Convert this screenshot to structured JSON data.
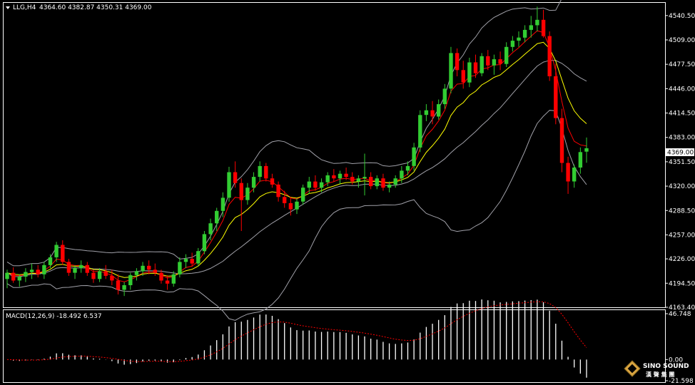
{
  "header": {
    "symbol": "LLG,H4",
    "ohlc": "4364.60 4382.87 4350.31 4369.00"
  },
  "macd_label": "MACD(12,26,9) -18.492 6.537",
  "current_price_label": "4369.00",
  "logo": {
    "name": "SINO SOUND",
    "subtitle": "漢 聲 集 團"
  },
  "colors": {
    "background": "#000000",
    "up": "#32cd32",
    "down": "#ff0000",
    "fast_ma": "#ff0000",
    "slow_ma": "#ffff00",
    "bollinger": "#a0a0a8",
    "grid_frame": "#ffffff",
    "macd_hist": "#ffffff",
    "macd_signal": "#ff0000"
  },
  "chart_data": [
    {
      "type": "candlestick",
      "timeframe": "H4",
      "ylim": [
        4163.4,
        4556
      ],
      "y_ticks": [
        "4540.50",
        "4509.00",
        "4477.50",
        "4446.00",
        "4414.50",
        "4383.00",
        "4351.50",
        "4320.00",
        "4288.50",
        "4257.00",
        "4226.00",
        "4194.50",
        "4163.40"
      ],
      "candles": [
        [
          4200,
          4212,
          4188,
          4208
        ],
        [
          4208,
          4215,
          4195,
          4198
        ],
        [
          4198,
          4206,
          4190,
          4203
        ],
        [
          4203,
          4214,
          4196,
          4209
        ],
        [
          4209,
          4220,
          4200,
          4212
        ],
        [
          4212,
          4218,
          4202,
          4206
        ],
        [
          4206,
          4222,
          4200,
          4218
        ],
        [
          4218,
          4232,
          4214,
          4228
        ],
        [
          4228,
          4248,
          4222,
          4244
        ],
        [
          4244,
          4250,
          4218,
          4222
        ],
        [
          4222,
          4226,
          4204,
          4208
        ],
        [
          4208,
          4218,
          4200,
          4214
        ],
        [
          4214,
          4224,
          4208,
          4218
        ],
        [
          4218,
          4222,
          4204,
          4208
        ],
        [
          4208,
          4212,
          4195,
          4200
        ],
        [
          4200,
          4214,
          4196,
          4210
        ],
        [
          4210,
          4218,
          4200,
          4204
        ],
        [
          4204,
          4212,
          4192,
          4198
        ],
        [
          4198,
          4206,
          4180,
          4186
        ],
        [
          4186,
          4196,
          4178,
          4192
        ],
        [
          4192,
          4208,
          4186,
          4205
        ],
        [
          4205,
          4214,
          4198,
          4210
        ],
        [
          4210,
          4222,
          4204,
          4217
        ],
        [
          4217,
          4224,
          4206,
          4212
        ],
        [
          4212,
          4220,
          4204,
          4208
        ],
        [
          4208,
          4212,
          4194,
          4198
        ],
        [
          4198,
          4205,
          4186,
          4194
        ],
        [
          4194,
          4210,
          4190,
          4206
        ],
        [
          4206,
          4228,
          4202,
          4222
        ],
        [
          4222,
          4232,
          4214,
          4226
        ],
        [
          4226,
          4234,
          4216,
          4220
        ],
        [
          4220,
          4240,
          4216,
          4236
        ],
        [
          4236,
          4262,
          4232,
          4258
        ],
        [
          4258,
          4278,
          4250,
          4272
        ],
        [
          4272,
          4292,
          4262,
          4288
        ],
        [
          4288,
          4312,
          4280,
          4305
        ],
        [
          4305,
          4345,
          4300,
          4338
        ],
        [
          4338,
          4352,
          4318,
          4324
        ],
        [
          4324,
          4330,
          4262,
          4302
        ],
        [
          4302,
          4324,
          4296,
          4318
        ],
        [
          4318,
          4338,
          4312,
          4332
        ],
        [
          4332,
          4352,
          4326,
          4346
        ],
        [
          4346,
          4350,
          4326,
          4330
        ],
        [
          4330,
          4336,
          4318,
          4322
        ],
        [
          4322,
          4326,
          4300,
          4306
        ],
        [
          4306,
          4314,
          4292,
          4298
        ],
        [
          4298,
          4306,
          4282,
          4290
        ],
        [
          4290,
          4304,
          4284,
          4300
        ],
        [
          4300,
          4322,
          4296,
          4318
        ],
        [
          4318,
          4332,
          4310,
          4326
        ],
        [
          4326,
          4334,
          4314,
          4318
        ],
        [
          4318,
          4330,
          4312,
          4325
        ],
        [
          4325,
          4338,
          4320,
          4334
        ],
        [
          4334,
          4342,
          4326,
          4330
        ],
        [
          4330,
          4340,
          4322,
          4336
        ],
        [
          4336,
          4344,
          4328,
          4332
        ],
        [
          4332,
          4338,
          4322,
          4326
        ],
        [
          4326,
          4334,
          4318,
          4330
        ],
        [
          4330,
          4362,
          4308,
          4332
        ],
        [
          4332,
          4338,
          4316,
          4320
        ],
        [
          4320,
          4334,
          4316,
          4330
        ],
        [
          4330,
          4336,
          4314,
          4318
        ],
        [
          4318,
          4326,
          4312,
          4322
        ],
        [
          4322,
          4334,
          4318,
          4330
        ],
        [
          4330,
          4346,
          4324,
          4340
        ],
        [
          4340,
          4352,
          4334,
          4346
        ],
        [
          4346,
          4376,
          4340,
          4370
        ],
        [
          4370,
          4418,
          4364,
          4412
        ],
        [
          4412,
          4426,
          4404,
          4418
        ],
        [
          4418,
          4430,
          4400,
          4410
        ],
        [
          4410,
          4432,
          4406,
          4426
        ],
        [
          4426,
          4452,
          4420,
          4446
        ],
        [
          4446,
          4500,
          4440,
          4492
        ],
        [
          4492,
          4498,
          4462,
          4470
        ],
        [
          4470,
          4482,
          4446,
          4454
        ],
        [
          4454,
          4486,
          4448,
          4480
        ],
        [
          4480,
          4490,
          4460,
          4466
        ],
        [
          4466,
          4492,
          4462,
          4488
        ],
        [
          4488,
          4496,
          4470,
          4476
        ],
        [
          4476,
          4490,
          4464,
          4484
        ],
        [
          4484,
          4494,
          4470,
          4478
        ],
        [
          4478,
          4506,
          4474,
          4500
        ],
        [
          4500,
          4514,
          4494,
          4508
        ],
        [
          4508,
          4520,
          4500,
          4512
        ],
        [
          4512,
          4528,
          4506,
          4522
        ],
        [
          4522,
          4540,
          4512,
          4528
        ],
        [
          4528,
          4552,
          4520,
          4535
        ],
        [
          4535,
          4548,
          4512,
          4514
        ],
        [
          4514,
          4520,
          4456,
          4462
        ],
        [
          4462,
          4478,
          4400,
          4408
        ],
        [
          4408,
          4420,
          4338,
          4350
        ],
        [
          4350,
          4358,
          4310,
          4326
        ],
        [
          4326,
          4348,
          4318,
          4344
        ],
        [
          4344,
          4370,
          4336,
          4364
        ],
        [
          4364.6,
          4382.87,
          4350.31,
          4369.0
        ]
      ]
    },
    {
      "type": "histogram",
      "title": "MACD(12,26,9)",
      "ylim": [
        -21.598,
        46.748
      ],
      "y_ticks": [
        "46.748",
        "0.00",
        "-21.598"
      ],
      "macd": -18.492,
      "signal": 6.537
    }
  ]
}
